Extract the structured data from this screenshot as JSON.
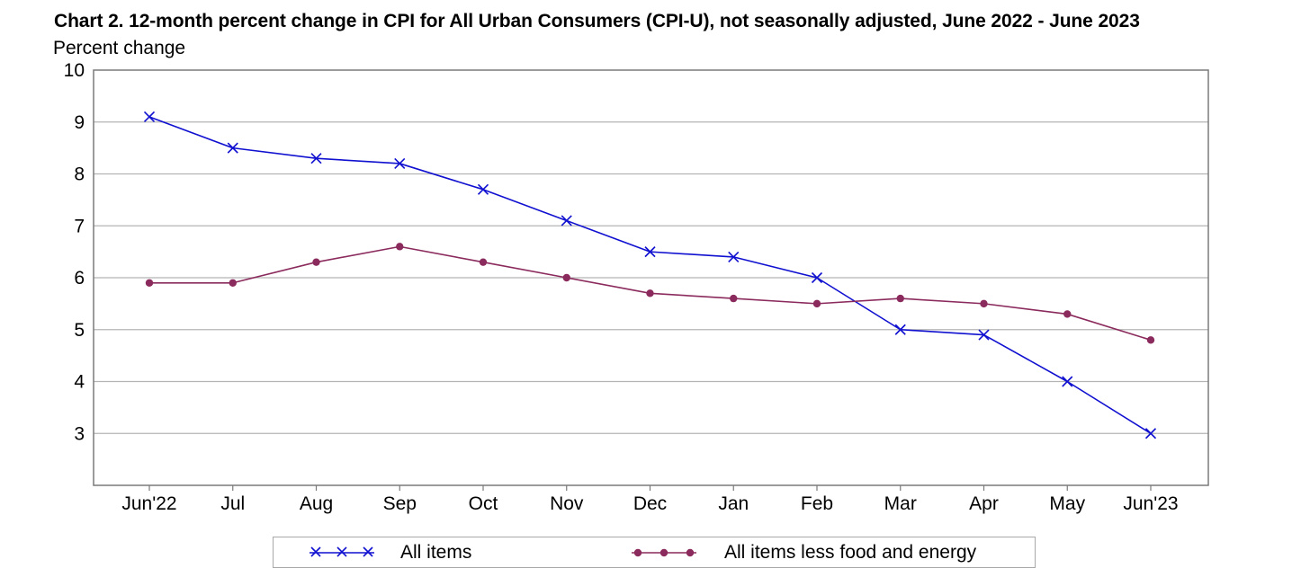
{
  "title": "Chart 2. 12-month percent change in CPI for All Urban Consumers (CPI-U), not seasonally adjusted, June 2022 - June 2023",
  "chart_data": {
    "type": "line",
    "title": "Chart 2. 12-month percent change in CPI for All Urban Consumers (CPI-U), not seasonally adjusted, June 2022 - June 2023",
    "ylabel": "Percent change",
    "xlabel": "",
    "categories": [
      "Jun'22",
      "Jul",
      "Aug",
      "Sep",
      "Oct",
      "Nov",
      "Dec",
      "Jan",
      "Feb",
      "Mar",
      "Apr",
      "May",
      "Jun'23"
    ],
    "ylim": [
      2,
      10
    ],
    "yticks": [
      3,
      4,
      5,
      6,
      7,
      8,
      9,
      10
    ],
    "grid": true,
    "legend_position": "bottom",
    "series": [
      {
        "name": "All items",
        "color": "#1010d0",
        "marker": "x",
        "values": [
          9.1,
          8.5,
          8.3,
          8.2,
          7.7,
          7.1,
          6.5,
          6.4,
          6.0,
          5.0,
          4.9,
          4.0,
          3.0
        ]
      },
      {
        "name": "All items less food and energy",
        "color": "#8b2a5c",
        "marker": "circle",
        "values": [
          5.9,
          5.9,
          6.3,
          6.6,
          6.3,
          6.0,
          5.7,
          5.6,
          5.5,
          5.6,
          5.5,
          5.3,
          4.8
        ]
      }
    ]
  }
}
